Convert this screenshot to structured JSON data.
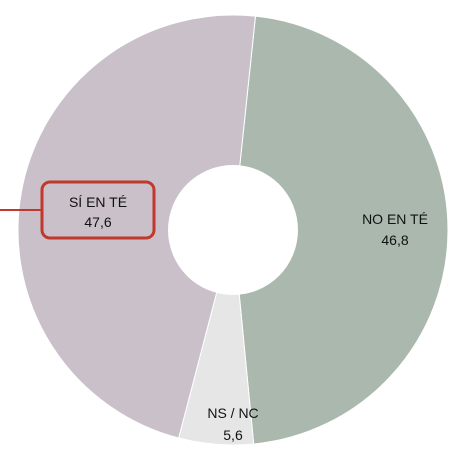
{
  "chart_data": {
    "type": "pie",
    "donut": true,
    "slices": [
      {
        "name": "NO EN TÉ",
        "value": 46.8,
        "value_label": "46,8",
        "color": "#aab8ae"
      },
      {
        "name": "NS / NC",
        "value": 5.6,
        "value_label": "5,6",
        "color": "#e6e6e6"
      },
      {
        "name": "SÍ EN TÉ",
        "value": 47.6,
        "value_label": "47,6",
        "color": "#c9c0c9"
      }
    ],
    "highlight": {
      "slice": "SÍ EN TÉ",
      "color": "#c0392b"
    }
  }
}
